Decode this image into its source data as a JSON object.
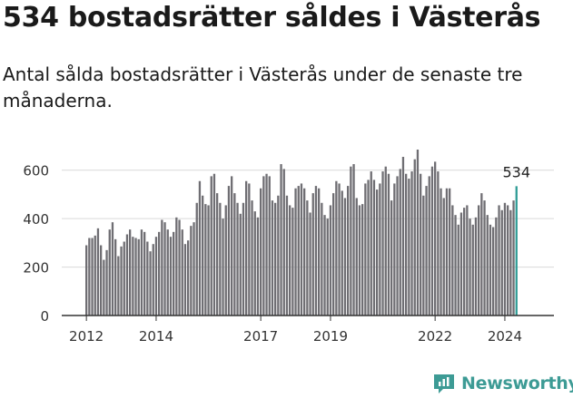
{
  "title": "534 bostadsrätter såldes i Västerås",
  "subtitle": "Antal sålda bostadsrätter i Västerås under de senaste tre månaderna.",
  "brand": {
    "name": "Newsworthy",
    "color": "#3d9b95"
  },
  "colors": {
    "bar": "#6f6e73",
    "highlight": "#2f9c96",
    "grid": "#d9d9d9",
    "axis": "#333333",
    "text": "#333333"
  },
  "chart_data": {
    "type": "bar",
    "title": "534 bostadsrätter såldes i Västerås",
    "xlabel": "",
    "ylabel": "",
    "ylim": [
      0,
      700
    ],
    "yticks": [
      0,
      200,
      400,
      600
    ],
    "xticks": [
      {
        "label": "2012",
        "index": 0
      },
      {
        "label": "2014",
        "index": 24
      },
      {
        "label": "2017",
        "index": 60
      },
      {
        "label": "2019",
        "index": 84
      },
      {
        "label": "2022",
        "index": 120
      },
      {
        "label": "2024",
        "index": 144
      }
    ],
    "start": "2012-01",
    "highlight_label": "534",
    "values": [
      290,
      320,
      320,
      330,
      360,
      290,
      230,
      270,
      355,
      385,
      315,
      245,
      285,
      305,
      335,
      355,
      325,
      320,
      315,
      355,
      345,
      305,
      265,
      295,
      325,
      345,
      395,
      385,
      355,
      325,
      345,
      405,
      395,
      355,
      295,
      310,
      370,
      385,
      465,
      555,
      495,
      460,
      455,
      575,
      585,
      505,
      465,
      400,
      455,
      535,
      575,
      505,
      465,
      420,
      465,
      555,
      545,
      475,
      430,
      405,
      525,
      575,
      585,
      575,
      475,
      465,
      495,
      625,
      605,
      495,
      455,
      445,
      525,
      535,
      545,
      525,
      475,
      425,
      505,
      535,
      525,
      465,
      415,
      400,
      455,
      505,
      555,
      545,
      515,
      485,
      535,
      615,
      625,
      485,
      455,
      460,
      545,
      560,
      595,
      560,
      520,
      545,
      595,
      615,
      585,
      475,
      545,
      575,
      605,
      655,
      585,
      565,
      595,
      645,
      685,
      585,
      495,
      535,
      575,
      615,
      635,
      595,
      525,
      485,
      525,
      525,
      455,
      415,
      375,
      425,
      445,
      455,
      400,
      375,
      405,
      455,
      505,
      475,
      415,
      375,
      365,
      405,
      455,
      435,
      465,
      455,
      435,
      475,
      534
    ]
  }
}
